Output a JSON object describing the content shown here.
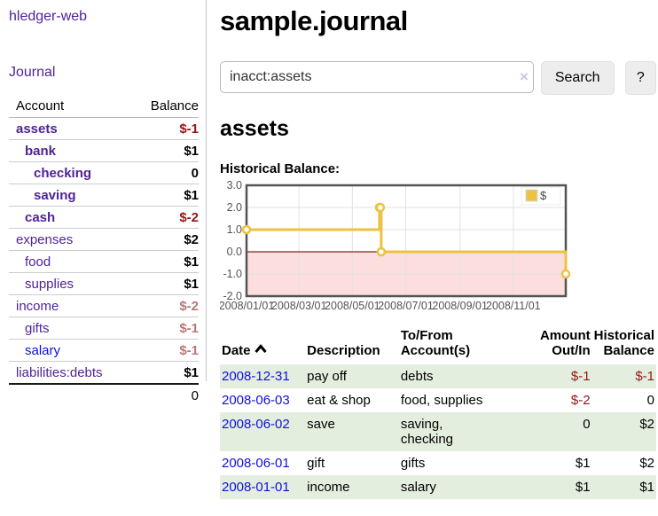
{
  "colors": {
    "accent_purple": "#4f2399",
    "link_blue": "#1010dd",
    "negative_dark": "#941616",
    "negative_light": "#bb7777",
    "row_stripe_green": "#e3eedf",
    "series_gold": "#edc240",
    "negative_region_pink": "#fcdede",
    "zero_line_red": "#7c2626"
  },
  "sidebar": {
    "brand": "hledger-web",
    "journal_link": "Journal",
    "accounts_table": {
      "headers": {
        "account": "Account",
        "balance": "Balance"
      },
      "rows": [
        {
          "label": "assets",
          "indent": 1,
          "bold": true,
          "amount": "$-1",
          "tone": "neg-dark",
          "link": "purple"
        },
        {
          "label": "bank",
          "indent": 2,
          "bold": true,
          "amount": "$1",
          "tone": "black",
          "link": "purple"
        },
        {
          "label": "checking",
          "indent": 3,
          "bold": true,
          "amount": "0",
          "tone": "black",
          "link": "purple"
        },
        {
          "label": "saving",
          "indent": 3,
          "bold": true,
          "amount": "$1",
          "tone": "black",
          "link": "purple"
        },
        {
          "label": "cash",
          "indent": 2,
          "bold": true,
          "amount": "$-2",
          "tone": "neg-dark",
          "link": "purple"
        },
        {
          "label": "expenses",
          "indent": 1,
          "bold": false,
          "amount": "$2",
          "tone": "black",
          "link": "purple"
        },
        {
          "label": "food",
          "indent": 2,
          "bold": false,
          "amount": "$1",
          "tone": "black",
          "link": "purple"
        },
        {
          "label": "supplies",
          "indent": 2,
          "bold": false,
          "amount": "$1",
          "tone": "black",
          "link": "purple"
        },
        {
          "label": "income",
          "indent": 1,
          "bold": false,
          "amount": "$-2",
          "tone": "neg-light",
          "link": "purple"
        },
        {
          "label": "gifts",
          "indent": 2,
          "bold": false,
          "amount": "$-1",
          "tone": "neg-light",
          "link": "purple"
        },
        {
          "label": "salary",
          "indent": 2,
          "bold": false,
          "amount": "$-1",
          "tone": "neg-light",
          "link": "blue"
        },
        {
          "label": "liabilities:debts",
          "indent": 1,
          "bold": false,
          "amount": "$1",
          "tone": "black",
          "link": "purple"
        }
      ],
      "total": "0"
    }
  },
  "header": {
    "title": "sample.journal"
  },
  "search": {
    "value": "inacct:assets",
    "clear_icon": "×",
    "search_label": "Search",
    "help_label": "?"
  },
  "account_page": {
    "title": "assets",
    "chart_label": "Historical Balance:"
  },
  "chart_data": {
    "type": "line",
    "title": "Historical Balance",
    "series": [
      {
        "name": "$",
        "color": "#edc240",
        "step": true,
        "points": [
          [
            "2008-01-01",
            1
          ],
          [
            "2008-06-01",
            2
          ],
          [
            "2008-06-02",
            2
          ],
          [
            "2008-06-03",
            0
          ],
          [
            "2008-12-31",
            -1
          ]
        ]
      }
    ],
    "xlim": [
      "2008-01-01",
      "2008-12-31"
    ],
    "ylim": [
      -2,
      3
    ],
    "yticks": [
      -2,
      -1,
      0,
      1,
      2,
      3
    ],
    "ytick_labels": [
      "-2.0",
      "-1.0",
      "0.0",
      "1.0",
      "2.0",
      "3.0"
    ],
    "xticks": [
      "2008-01-01",
      "2008-03-01",
      "2008-05-01",
      "2008-07-01",
      "2008-09-01",
      "2008-11-01"
    ],
    "xtick_labels": [
      "2008/01/01",
      "2008/03/01",
      "2008/05/01",
      "2008/07/01",
      "2008/09/01",
      "2008/11/01"
    ],
    "grid": true,
    "legend": {
      "position": "top-right",
      "label": "$"
    },
    "style": {
      "negative_region": "#fcdede",
      "zero_line": "#7c2626",
      "grid": "#e2e2e2",
      "border": "#545454",
      "axis_text": "#545454",
      "marker_fill": "#ffffff"
    }
  },
  "register": {
    "headers": {
      "date": "Date",
      "description": "Description",
      "accounts": "To/From\nAccount(s)",
      "amount": "Amount\nOut/In",
      "balance": "Historical\nBalance"
    },
    "rows": [
      {
        "date": "2008-12-31",
        "description": "pay off",
        "accounts": "debts",
        "amount": "$-1",
        "amount_neg": true,
        "balance": "$-1",
        "balance_neg": true,
        "shade": true
      },
      {
        "date": "2008-06-03",
        "description": "eat & shop",
        "accounts": "food, supplies",
        "amount": "$-2",
        "amount_neg": true,
        "balance": "0",
        "balance_neg": false,
        "shade": false
      },
      {
        "date": "2008-06-02",
        "description": "save",
        "accounts": "saving,\nchecking",
        "amount": "0",
        "amount_neg": false,
        "balance": "$2",
        "balance_neg": false,
        "shade": true
      },
      {
        "date": "2008-06-01",
        "description": "gift",
        "accounts": "gifts",
        "amount": "$1",
        "amount_neg": false,
        "balance": "$2",
        "balance_neg": false,
        "shade": false
      },
      {
        "date": "2008-01-01",
        "description": "income",
        "accounts": "salary",
        "amount": "$1",
        "amount_neg": false,
        "balance": "$1",
        "balance_neg": false,
        "shade": true
      }
    ]
  }
}
